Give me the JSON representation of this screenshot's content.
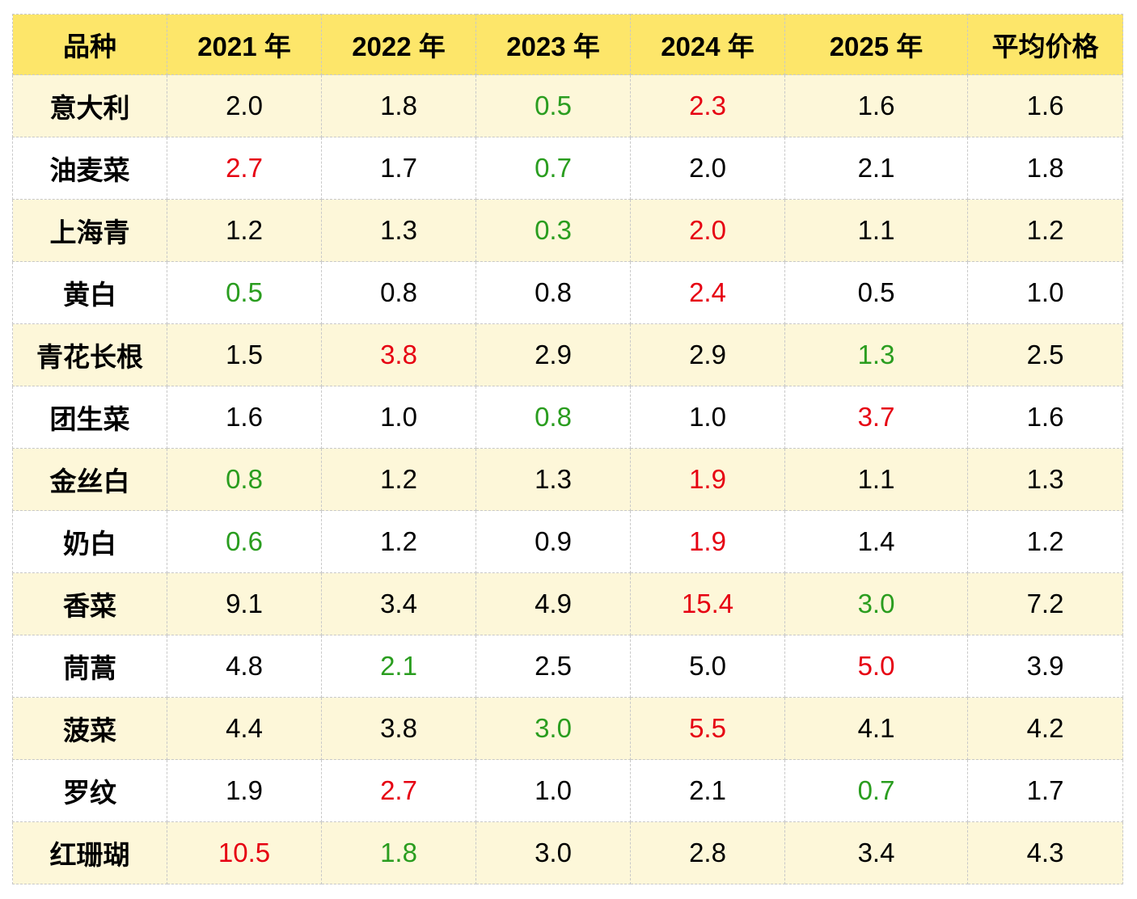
{
  "table": {
    "header": [
      "品种",
      "2021 年",
      "2022 年",
      "2023 年",
      "2024 年",
      "2025 年",
      "平均价格"
    ],
    "header_color": "#fde66a",
    "row_colors": [
      "#fdf7d9",
      "#ffffff"
    ],
    "rows": [
      {
        "name": "意大利",
        "values": [
          "2.0",
          "1.8",
          "0.5",
          "2.3",
          "1.6",
          "1.6"
        ],
        "colors": [
          "#000000",
          "#000000",
          "#2a9d1f",
          "#e60012",
          "#000000",
          "#000000"
        ]
      },
      {
        "name": "油麦菜",
        "values": [
          "2.7",
          "1.7",
          "0.7",
          "2.0",
          "2.1",
          "1.8"
        ],
        "colors": [
          "#e60012",
          "#000000",
          "#2a9d1f",
          "#000000",
          "#000000",
          "#000000"
        ]
      },
      {
        "name": "上海青",
        "values": [
          "1.2",
          "1.3",
          "0.3",
          "2.0",
          "1.1",
          "1.2"
        ],
        "colors": [
          "#000000",
          "#000000",
          "#2a9d1f",
          "#e60012",
          "#000000",
          "#000000"
        ]
      },
      {
        "name": "黄白",
        "values": [
          "0.5",
          "0.8",
          "0.8",
          "2.4",
          "0.5",
          "1.0"
        ],
        "colors": [
          "#2a9d1f",
          "#000000",
          "#000000",
          "#e60012",
          "#000000",
          "#000000"
        ]
      },
      {
        "name": "青花长根",
        "values": [
          "1.5",
          "3.8",
          "2.9",
          "2.9",
          "1.3",
          "2.5"
        ],
        "colors": [
          "#000000",
          "#e60012",
          "#000000",
          "#000000",
          "#2a9d1f",
          "#000000"
        ]
      },
      {
        "name": "团生菜",
        "values": [
          "1.6",
          "1.0",
          "0.8",
          "1.0",
          "3.7",
          "1.6"
        ],
        "colors": [
          "#000000",
          "#000000",
          "#2a9d1f",
          "#000000",
          "#e60012",
          "#000000"
        ]
      },
      {
        "name": "金丝白",
        "values": [
          "0.8",
          "1.2",
          "1.3",
          "1.9",
          "1.1",
          "1.3"
        ],
        "colors": [
          "#2a9d1f",
          "#000000",
          "#000000",
          "#e60012",
          "#000000",
          "#000000"
        ]
      },
      {
        "name": "奶白",
        "values": [
          "0.6",
          "1.2",
          "0.9",
          "1.9",
          "1.4",
          "1.2"
        ],
        "colors": [
          "#2a9d1f",
          "#000000",
          "#000000",
          "#e60012",
          "#000000",
          "#000000"
        ]
      },
      {
        "name": "香菜",
        "values": [
          "9.1",
          "3.4",
          "4.9",
          "15.4",
          "3.0",
          "7.2"
        ],
        "colors": [
          "#000000",
          "#000000",
          "#000000",
          "#e60012",
          "#2a9d1f",
          "#000000"
        ]
      },
      {
        "name": "茼蒿",
        "values": [
          "4.8",
          "2.1",
          "2.5",
          "5.0",
          "5.0",
          "3.9"
        ],
        "colors": [
          "#000000",
          "#2a9d1f",
          "#000000",
          "#000000",
          "#e60012",
          "#000000"
        ]
      },
      {
        "name": "菠菜",
        "values": [
          "4.4",
          "3.8",
          "3.0",
          "5.5",
          "4.1",
          "4.2"
        ],
        "colors": [
          "#000000",
          "#000000",
          "#2a9d1f",
          "#e60012",
          "#000000",
          "#000000"
        ]
      },
      {
        "name": "罗纹",
        "values": [
          "1.9",
          "2.7",
          "1.0",
          "2.1",
          "0.7",
          "1.7"
        ],
        "colors": [
          "#000000",
          "#e60012",
          "#000000",
          "#000000",
          "#2a9d1f",
          "#000000"
        ]
      },
      {
        "name": "红珊瑚",
        "values": [
          "10.5",
          "1.8",
          "3.0",
          "2.8",
          "3.4",
          "4.3"
        ],
        "colors": [
          "#e60012",
          "#2a9d1f",
          "#000000",
          "#000000",
          "#000000",
          "#000000"
        ]
      }
    ]
  }
}
